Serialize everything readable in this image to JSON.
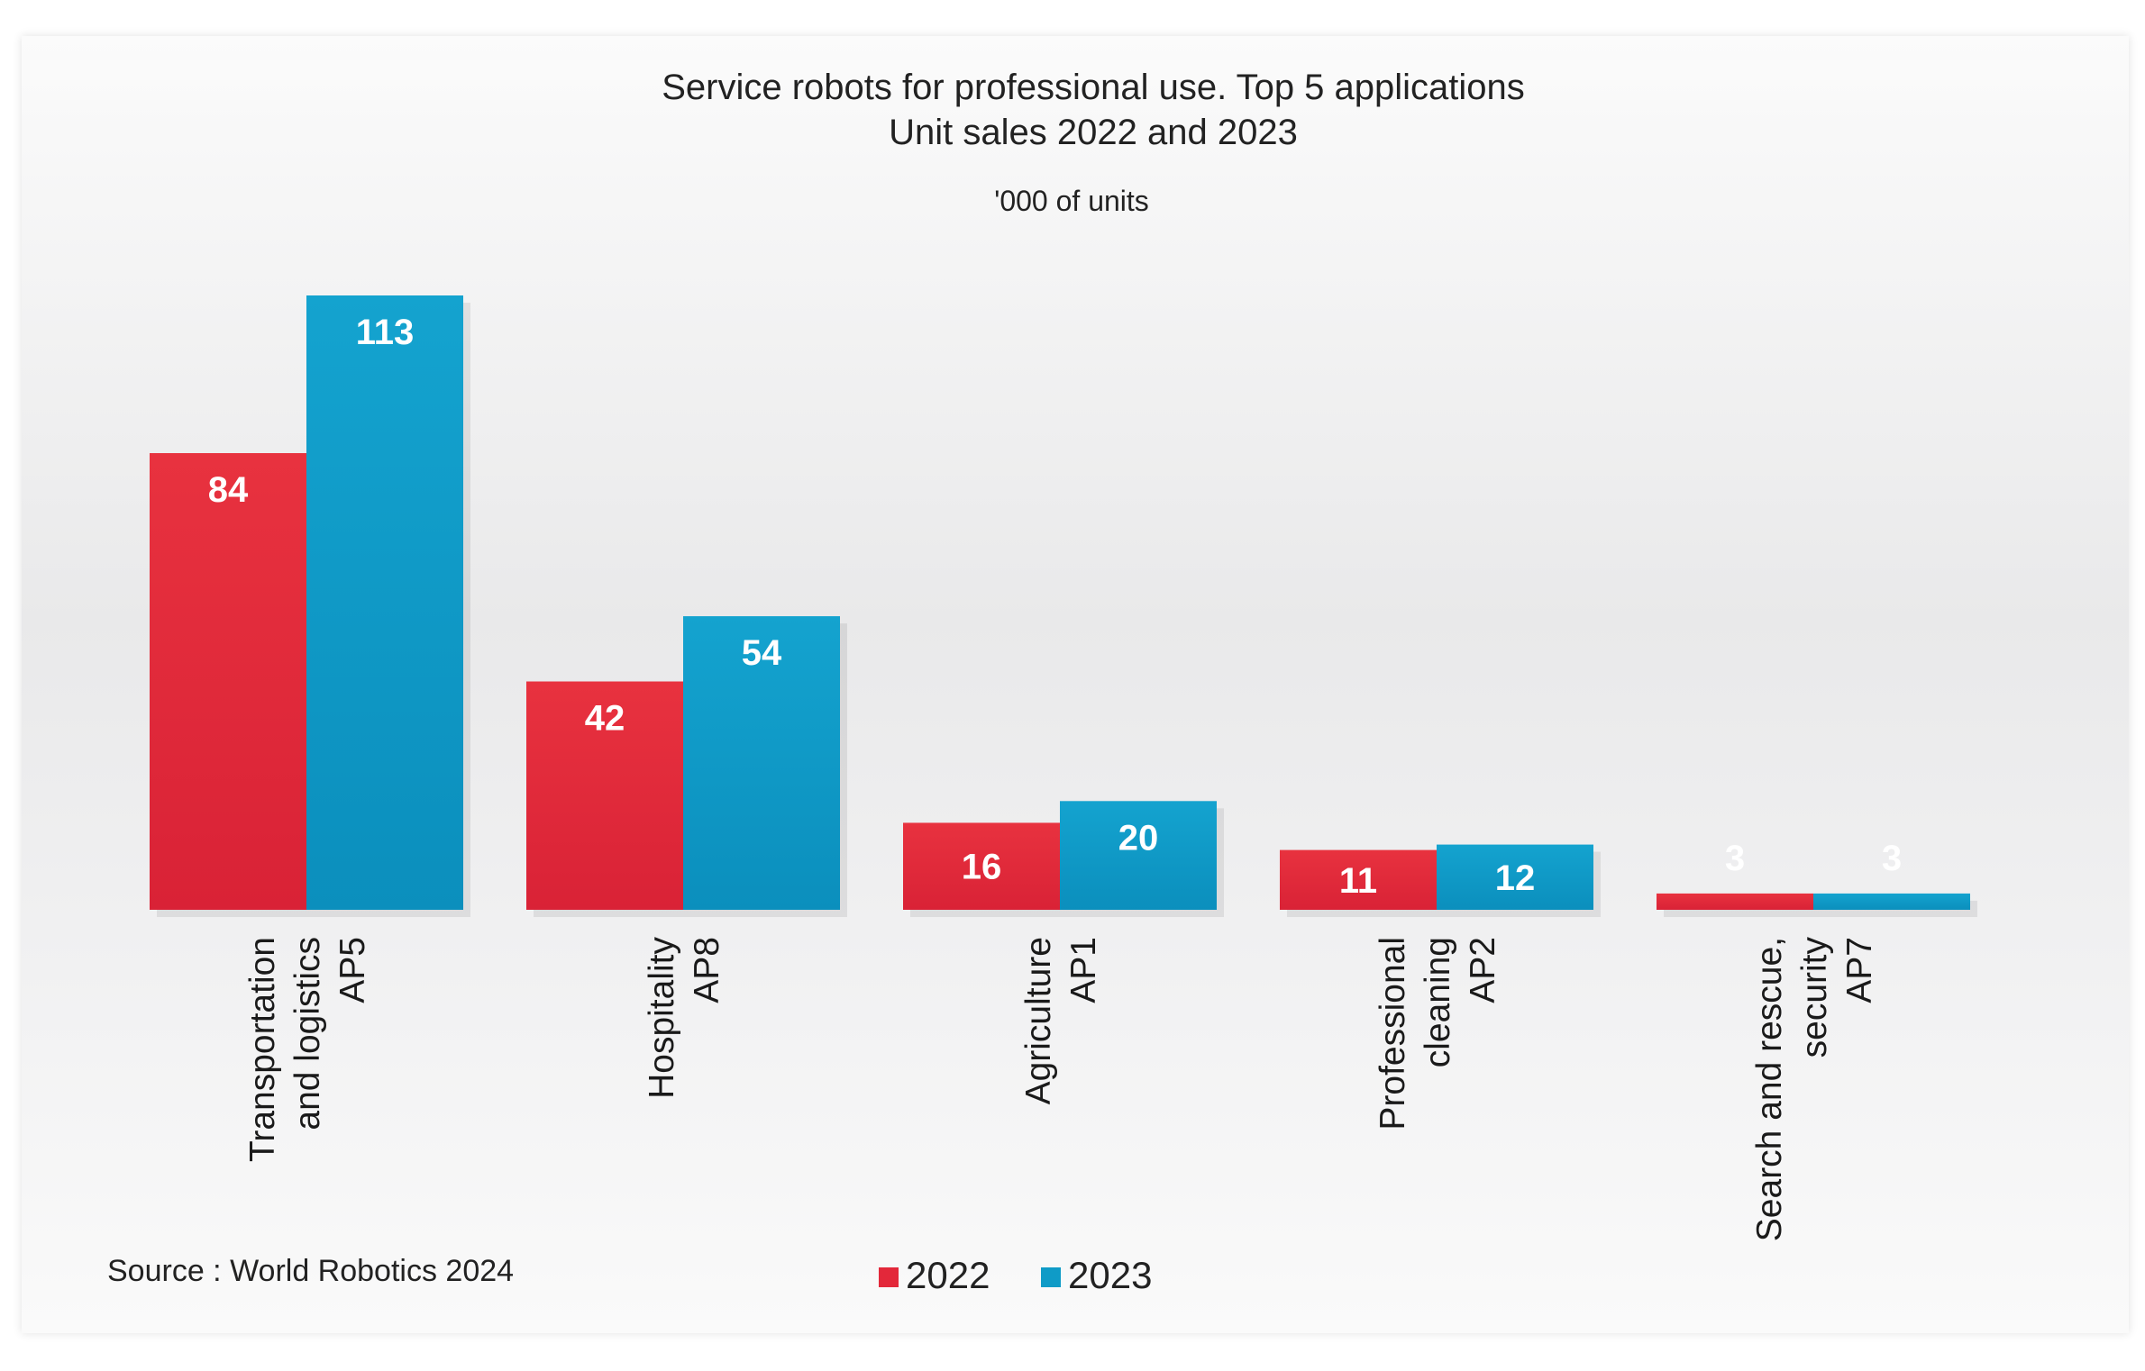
{
  "chart_data": {
    "type": "bar",
    "title": "Service robots for professional use. Top 5 applications",
    "subtitle": "Unit sales 2022 and 2023",
    "ylabel": "'000 of units",
    "source": "Source : World Robotics 2024",
    "categories": [
      [
        "Transportation",
        "and logistics",
        "AP5"
      ],
      [
        "Hospitality",
        "AP8"
      ],
      [
        "Agriculture",
        "AP1"
      ],
      [
        "Professional",
        "cleaning",
        "AP2"
      ],
      [
        "Search and rescue,",
        "security",
        "AP7"
      ]
    ],
    "series": [
      {
        "name": "2022",
        "color": "#e3283a",
        "values": [
          84,
          42,
          16,
          11,
          3
        ]
      },
      {
        "name": "2023",
        "color": "#0f9bc7",
        "values": [
          113,
          54,
          20,
          12,
          3
        ]
      }
    ],
    "ylim": [
      0,
      113
    ],
    "grid": false,
    "legend_position": "bottom-center",
    "data_labels": true
  }
}
